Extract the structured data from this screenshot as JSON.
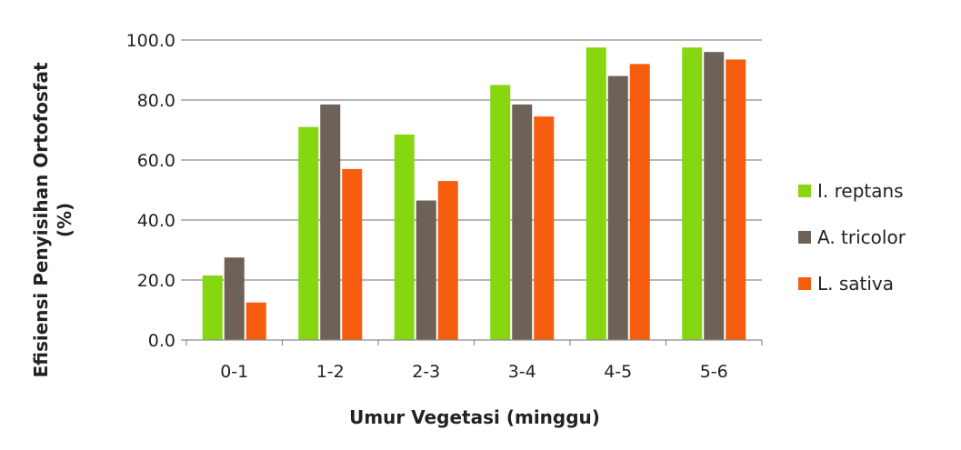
{
  "chart_data": {
    "type": "bar",
    "title": "",
    "xlabel": "Umur Vegetasi (minggu)",
    "ylabel_lines": [
      "Efisiensi Penyisihan Ortofosfat",
      "(%)"
    ],
    "ylim": [
      0,
      100
    ],
    "yticks": [
      0,
      20,
      40,
      60,
      80,
      100
    ],
    "ytick_labels": [
      "0.0",
      "20.0",
      "40.0",
      "60.0",
      "80.0",
      "100.0"
    ],
    "grid": true,
    "legend_position": "right",
    "categories": [
      "0-1",
      "1-2",
      "2-3",
      "3-4",
      "4-5",
      "5-6"
    ],
    "series": [
      {
        "name": "I. reptans",
        "color": "#86d610",
        "values": [
          21.5,
          71.0,
          68.5,
          85.0,
          97.5,
          97.5
        ]
      },
      {
        "name": "A. tricolor",
        "color": "#6e6258",
        "values": [
          27.5,
          78.5,
          46.5,
          78.5,
          88.0,
          96.0
        ]
      },
      {
        "name": "L. sativa",
        "color": "#f75d0e",
        "values": [
          12.5,
          57.0,
          53.0,
          74.5,
          92.0,
          93.5
        ]
      }
    ]
  }
}
